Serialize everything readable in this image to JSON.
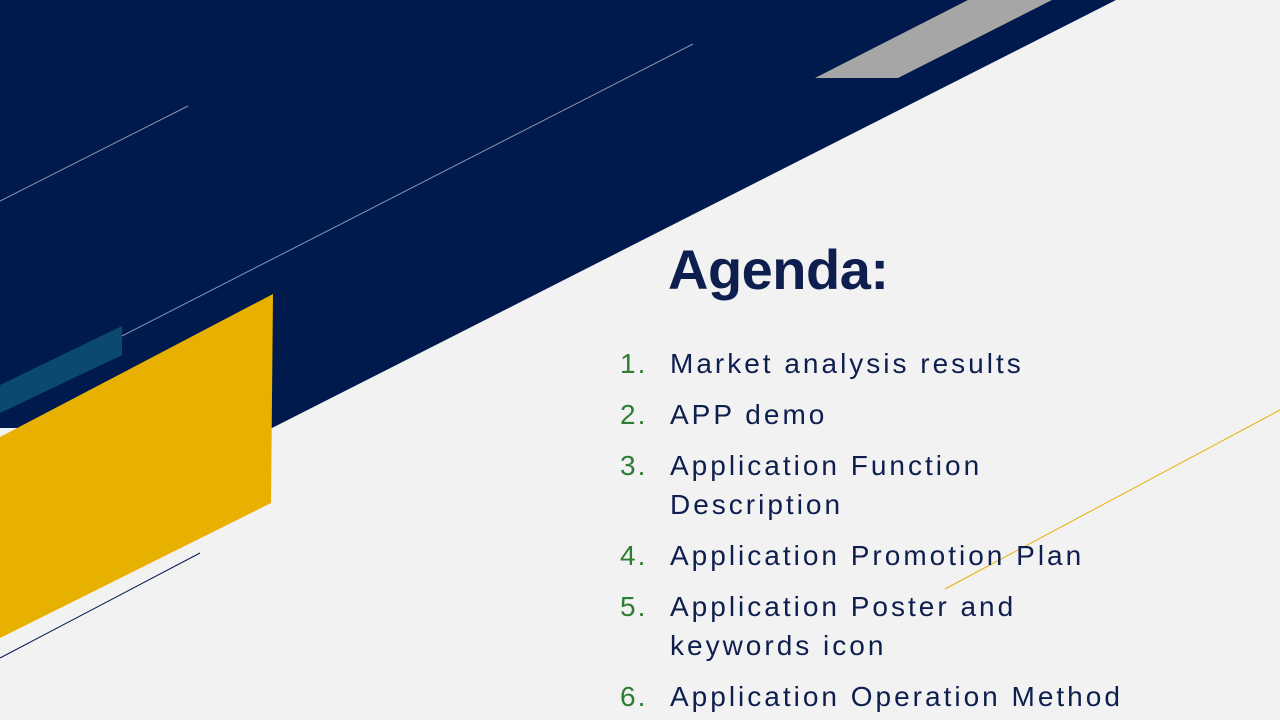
{
  "slide": {
    "title": "Agenda:",
    "items": [
      {
        "number": "1.",
        "text": "Market analysis results"
      },
      {
        "number": "2.",
        "text": "APP demo"
      },
      {
        "number": "3.",
        "text": "Application Function Description"
      },
      {
        "number": "4.",
        "text": "Application Promotion Plan"
      },
      {
        "number": "5.",
        "text": "Application Poster and keywords icon"
      },
      {
        "number": "6.",
        "text": "Application Operation Method"
      }
    ]
  },
  "colors": {
    "background": "#f2f2f2",
    "navy": "#001a4d",
    "gold": "#e8b000",
    "gray": "#a6a6a6",
    "teal": "#0b4a6e",
    "title": "#0e1e4e",
    "number": "#2e7d32"
  }
}
